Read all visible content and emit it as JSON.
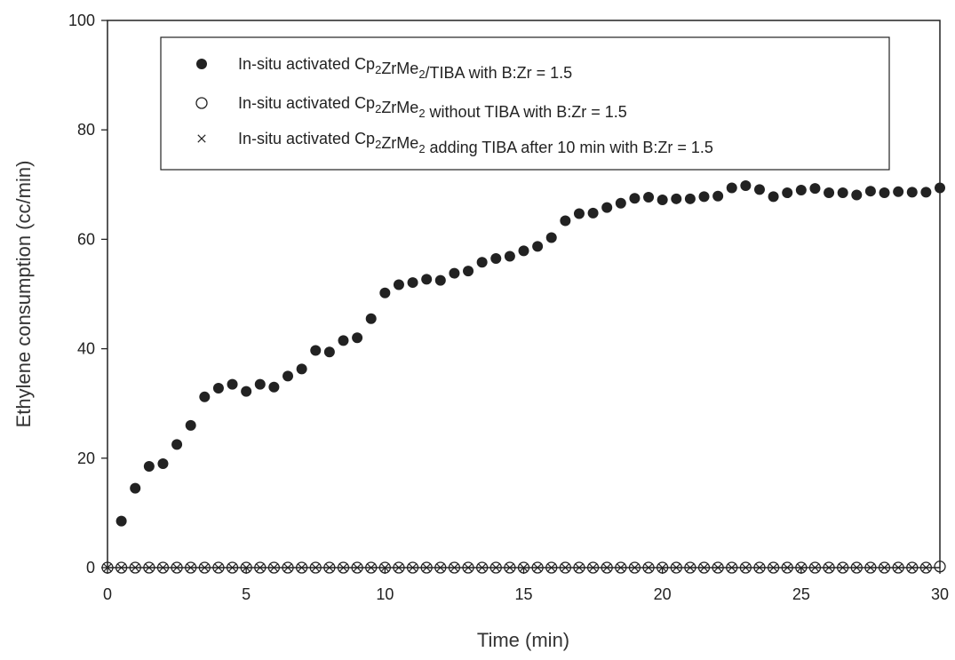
{
  "chart_data": {
    "type": "scatter",
    "xlabel": "Time (min)",
    "ylabel": "Ethylene consumption (cc/min)",
    "xlim": [
      0,
      30
    ],
    "ylim": [
      0,
      100
    ],
    "xticks": [
      "0",
      "5",
      "10",
      "15",
      "20",
      "25",
      "30"
    ],
    "yticks": [
      "0",
      "20",
      "40",
      "60",
      "80",
      "100"
    ],
    "grid": false,
    "legend_position": "top-right",
    "series": [
      {
        "name": "In-situ activated Cp2ZrMe2/TIBA with B:Zr = 1.5",
        "legend": {
          "prefix": "In-situ activated Cp",
          "sub1": "2",
          "mid": "ZrMe",
          "sub2": "2",
          "suffix": "/TIBA with B:Zr = 1.5"
        },
        "marker": "filled-circle",
        "color": "#222222",
        "x": [
          0.5,
          1,
          1.5,
          2,
          2.5,
          3,
          3.5,
          4,
          4.5,
          5,
          5.5,
          6,
          6.5,
          7,
          7.5,
          8,
          8.5,
          9,
          9.5,
          10,
          10.5,
          11,
          11.5,
          12,
          12.5,
          13,
          13.5,
          14,
          14.5,
          15,
          15.5,
          16,
          16.5,
          17,
          17.5,
          18,
          18.5,
          19,
          19.5,
          20,
          20.5,
          21,
          21.5,
          22,
          22.5,
          23,
          23.5,
          24,
          24.5,
          25,
          25.5,
          26,
          26.5,
          27,
          27.5,
          28,
          28.5,
          29,
          29.5,
          30
        ],
        "y": [
          8.5,
          14.5,
          18.5,
          19,
          22.5,
          26,
          31.2,
          32.8,
          33.5,
          32.2,
          33.5,
          33,
          35,
          36.3,
          39.7,
          39.4,
          41.5,
          42,
          45.5,
          50.2,
          51.7,
          52.1,
          52.7,
          52.5,
          53.8,
          54.2,
          55.8,
          56.5,
          56.9,
          57.9,
          58.7,
          60.3,
          63.4,
          64.7,
          64.8,
          65.8,
          66.6,
          67.5,
          67.7,
          67.2,
          67.4,
          67.4,
          67.8,
          67.9,
          69.4,
          69.8,
          69.1,
          67.8,
          68.5,
          69,
          69.3,
          68.5,
          68.5,
          68.1,
          68.8,
          68.5,
          68.7,
          68.6,
          68.6,
          69.4
        ]
      },
      {
        "name": "In-situ activated Cp2ZrMe2 without TIBA with B:Zr = 1.5",
        "legend": {
          "prefix": "In-situ activated Cp",
          "sub1": "2",
          "mid": "ZrMe",
          "sub2": "2",
          "suffix": " without TIBA with B:Zr = 1.5"
        },
        "marker": "open-circle",
        "color": "#222222",
        "x": [
          0,
          0.5,
          1,
          1.5,
          2,
          2.5,
          3,
          3.5,
          4,
          4.5,
          5,
          5.5,
          6,
          6.5,
          7,
          7.5,
          8,
          8.5,
          9,
          9.5,
          10,
          10.5,
          11,
          11.5,
          12,
          12.5,
          13,
          13.5,
          14,
          14.5,
          15,
          15.5,
          16,
          16.5,
          17,
          17.5,
          18,
          18.5,
          19,
          19.5,
          20,
          20.5,
          21,
          21.5,
          22,
          22.5,
          23,
          23.5,
          24,
          24.5,
          25,
          25.5,
          26,
          26.5,
          27,
          27.5,
          28,
          28.5,
          29,
          29.5,
          30
        ],
        "y": [
          0,
          0,
          0,
          0,
          0,
          0,
          0,
          0,
          0,
          0,
          0,
          0,
          0,
          0,
          0,
          0,
          0,
          0,
          0,
          0,
          0,
          0,
          0,
          0,
          0,
          0,
          0,
          0,
          0,
          0,
          0,
          0,
          0,
          0,
          0,
          0,
          0,
          0,
          0,
          0,
          0,
          0,
          0,
          0,
          0,
          0,
          0,
          0,
          0,
          0,
          0,
          0,
          0,
          0,
          0,
          0,
          0,
          0,
          0,
          0,
          0.2
        ]
      },
      {
        "name": "In-situ activated Cp2ZrMe2 adding TIBA after 10 min with B:Zr = 1.5",
        "legend": {
          "prefix": "In-situ activated Cp",
          "sub1": "2",
          "mid": "ZrMe",
          "sub2": "2",
          "suffix": " adding TIBA after 10 min with B:Zr = 1.5"
        },
        "marker": "x",
        "color": "#222222",
        "x": [
          0,
          0.5,
          1,
          1.5,
          2,
          2.5,
          3,
          3.5,
          4,
          4.5,
          5,
          5.5,
          6,
          6.5,
          7,
          7.5,
          8,
          8.5,
          9,
          9.5,
          10,
          10.5,
          11,
          11.5,
          12,
          12.5,
          13,
          13.5,
          14,
          14.5,
          15,
          15.5,
          16,
          16.5,
          17,
          17.5,
          18,
          18.5,
          19,
          19.5,
          20,
          20.5,
          21,
          21.5,
          22,
          22.5,
          23,
          23.5,
          24,
          24.5,
          25,
          25.5,
          26,
          26.5,
          27,
          27.5,
          28,
          28.5,
          29,
          29.5
        ],
        "y": [
          0,
          0,
          0,
          0,
          0,
          0,
          0,
          0,
          0,
          0,
          0,
          0,
          0,
          0,
          0,
          0,
          0,
          0,
          0,
          0,
          0,
          0,
          0,
          0,
          0,
          0,
          0,
          0,
          0,
          0,
          0,
          0,
          0,
          0,
          0,
          0,
          0,
          0,
          0,
          0,
          0,
          0,
          0,
          0,
          0,
          0,
          0,
          0,
          0,
          0,
          0,
          0,
          0,
          0,
          0,
          0,
          0,
          0,
          0,
          0
        ]
      }
    ]
  }
}
